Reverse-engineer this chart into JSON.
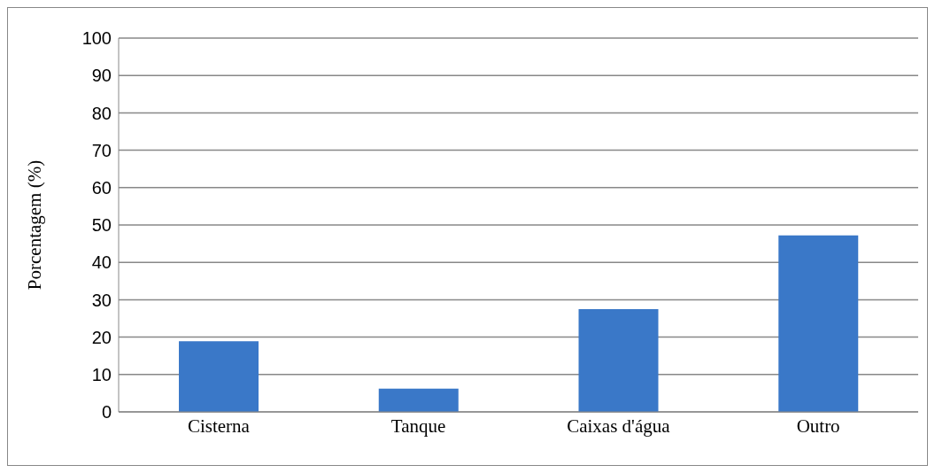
{
  "chart_data": {
    "type": "bar",
    "ylabel": "Porcentagem (%)",
    "categories": [
      "Cisterna",
      "Tanque",
      "Caixas d'água",
      "Outro"
    ],
    "values": [
      18.9,
      6.2,
      27.5,
      47.2
    ],
    "color": "#3a78c8",
    "ylim": [
      0,
      100
    ],
    "yticks": [
      0,
      10,
      20,
      30,
      40,
      50,
      60,
      70,
      80,
      90,
      100
    ],
    "grid": "y"
  }
}
